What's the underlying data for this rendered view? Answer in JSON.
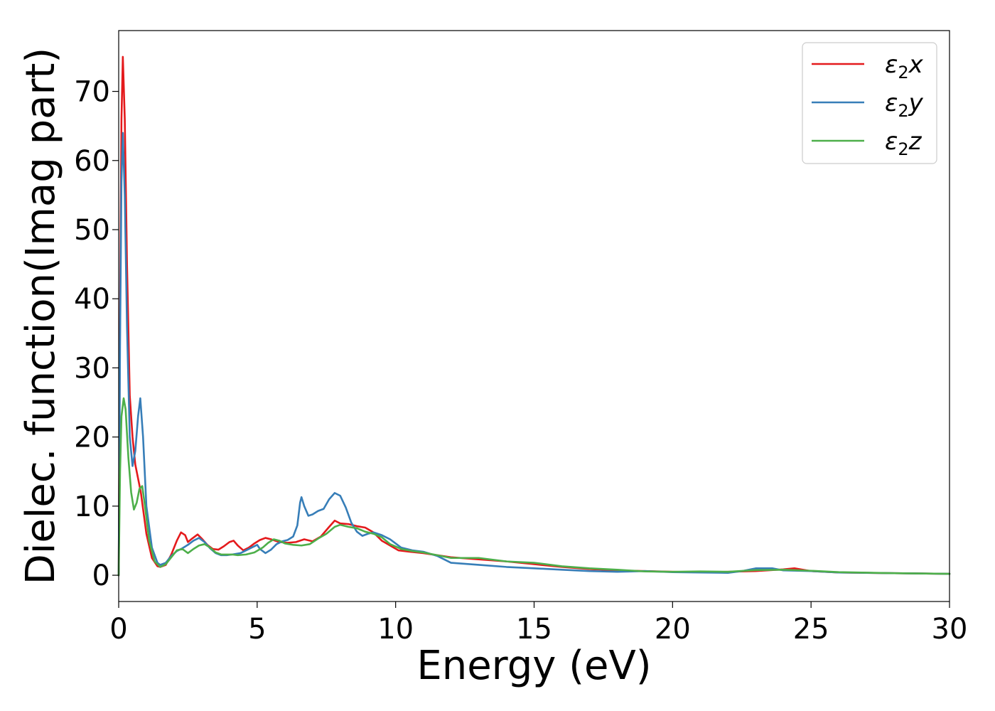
{
  "chart_data": {
    "type": "line",
    "title": "",
    "xlabel": "Energy (eV)",
    "ylabel": "Dielec. function(Imag part)",
    "xlim": [
      0,
      30
    ],
    "ylim": [
      -3.8,
      78.8
    ],
    "xticks": [
      0,
      5,
      10,
      15,
      20,
      25,
      30
    ],
    "yticks": [
      0,
      10,
      20,
      30,
      40,
      50,
      60,
      70
    ],
    "grid": false,
    "legend_position": "top-right",
    "series": [
      {
        "name": "ε2x",
        "label_parts": [
          "ε",
          "2",
          "x"
        ],
        "color": "#e41a1c",
        "points": [
          [
            0,
            0
          ],
          [
            0.05,
            38
          ],
          [
            0.1,
            66
          ],
          [
            0.15,
            75
          ],
          [
            0.22,
            66
          ],
          [
            0.3,
            45
          ],
          [
            0.4,
            26
          ],
          [
            0.5,
            20
          ],
          [
            0.6,
            16
          ],
          [
            0.8,
            12
          ],
          [
            1.0,
            6
          ],
          [
            1.2,
            2.5
          ],
          [
            1.4,
            1.3
          ],
          [
            1.5,
            1.2
          ],
          [
            1.7,
            1.5
          ],
          [
            1.9,
            3
          ],
          [
            2.1,
            5
          ],
          [
            2.25,
            6.2
          ],
          [
            2.4,
            5.8
          ],
          [
            2.5,
            4.8
          ],
          [
            2.65,
            5.3
          ],
          [
            2.85,
            5.9
          ],
          [
            3.0,
            5.3
          ],
          [
            3.2,
            4.4
          ],
          [
            3.4,
            3.8
          ],
          [
            3.6,
            3.7
          ],
          [
            3.8,
            4.2
          ],
          [
            4.0,
            4.8
          ],
          [
            4.15,
            5.0
          ],
          [
            4.3,
            4.3
          ],
          [
            4.5,
            3.6
          ],
          [
            4.7,
            4.0
          ],
          [
            4.9,
            4.6
          ],
          [
            5.1,
            5.1
          ],
          [
            5.3,
            5.4
          ],
          [
            5.5,
            5.2
          ],
          [
            5.8,
            4.8
          ],
          [
            6.1,
            4.7
          ],
          [
            6.4,
            4.8
          ],
          [
            6.7,
            5.2
          ],
          [
            7.0,
            4.9
          ],
          [
            7.3,
            5.6
          ],
          [
            7.6,
            7.0
          ],
          [
            7.8,
            7.9
          ],
          [
            8.0,
            7.5
          ],
          [
            8.3,
            7.4
          ],
          [
            8.6,
            7.1
          ],
          [
            8.9,
            6.9
          ],
          [
            9.2,
            6.2
          ],
          [
            9.5,
            5.0
          ],
          [
            9.8,
            4.3
          ],
          [
            10.1,
            3.6
          ],
          [
            10.5,
            3.4
          ],
          [
            11,
            3.2
          ],
          [
            12,
            2.6
          ],
          [
            13,
            2.3
          ],
          [
            14,
            2.0
          ],
          [
            15,
            1.6
          ],
          [
            16,
            1.2
          ],
          [
            17,
            0.9
          ],
          [
            18,
            0.7
          ],
          [
            19,
            0.6
          ],
          [
            20,
            0.5
          ],
          [
            21,
            0.45
          ],
          [
            22,
            0.5
          ],
          [
            23,
            0.6
          ],
          [
            24,
            0.85
          ],
          [
            24.4,
            1.0
          ],
          [
            25,
            0.6
          ],
          [
            26,
            0.4
          ],
          [
            28,
            0.3
          ],
          [
            30,
            0.2
          ]
        ]
      },
      {
        "name": "ε2y",
        "label_parts": [
          "ε",
          "2",
          "y"
        ],
        "color": "#377eb8",
        "points": [
          [
            0,
            0
          ],
          [
            0.05,
            34
          ],
          [
            0.1,
            57
          ],
          [
            0.15,
            64
          ],
          [
            0.22,
            55
          ],
          [
            0.3,
            36
          ],
          [
            0.4,
            20
          ],
          [
            0.5,
            15.8
          ],
          [
            0.6,
            18
          ],
          [
            0.7,
            23
          ],
          [
            0.78,
            25.6
          ],
          [
            0.88,
            20
          ],
          [
            1.0,
            10
          ],
          [
            1.2,
            4
          ],
          [
            1.4,
            1.8
          ],
          [
            1.5,
            1.5
          ],
          [
            1.7,
            1.8
          ],
          [
            1.9,
            2.8
          ],
          [
            2.1,
            3.5
          ],
          [
            2.3,
            3.9
          ],
          [
            2.5,
            4.4
          ],
          [
            2.7,
            5.0
          ],
          [
            2.9,
            5.4
          ],
          [
            3.1,
            4.8
          ],
          [
            3.3,
            3.9
          ],
          [
            3.5,
            3.2
          ],
          [
            3.7,
            2.9
          ],
          [
            3.9,
            2.9
          ],
          [
            4.1,
            3.0
          ],
          [
            4.4,
            3.2
          ],
          [
            4.6,
            3.6
          ],
          [
            4.8,
            4.0
          ],
          [
            5.0,
            4.4
          ],
          [
            5.1,
            3.8
          ],
          [
            5.3,
            3.2
          ],
          [
            5.5,
            3.7
          ],
          [
            5.7,
            4.5
          ],
          [
            5.9,
            4.9
          ],
          [
            6.1,
            5.1
          ],
          [
            6.3,
            5.6
          ],
          [
            6.45,
            7.2
          ],
          [
            6.55,
            10.5
          ],
          [
            6.6,
            11.3
          ],
          [
            6.7,
            10.0
          ],
          [
            6.85,
            8.6
          ],
          [
            7.0,
            8.8
          ],
          [
            7.2,
            9.3
          ],
          [
            7.4,
            9.6
          ],
          [
            7.6,
            11.0
          ],
          [
            7.8,
            11.9
          ],
          [
            8.0,
            11.5
          ],
          [
            8.2,
            9.8
          ],
          [
            8.4,
            7.6
          ],
          [
            8.6,
            6.3
          ],
          [
            8.8,
            5.7
          ],
          [
            9.0,
            6.0
          ],
          [
            9.2,
            6.2
          ],
          [
            9.5,
            5.8
          ],
          [
            9.8,
            5.2
          ],
          [
            10.2,
            4.0
          ],
          [
            10.6,
            3.6
          ],
          [
            11,
            3.4
          ],
          [
            11.5,
            2.8
          ],
          [
            12,
            1.8
          ],
          [
            13,
            1.5
          ],
          [
            14,
            1.2
          ],
          [
            15,
            1.0
          ],
          [
            16,
            0.8
          ],
          [
            17,
            0.6
          ],
          [
            18,
            0.5
          ],
          [
            19,
            0.6
          ],
          [
            20,
            0.45
          ],
          [
            21,
            0.4
          ],
          [
            22,
            0.35
          ],
          [
            22.5,
            0.6
          ],
          [
            23,
            1.0
          ],
          [
            23.6,
            1.0
          ],
          [
            24,
            0.7
          ],
          [
            25,
            0.6
          ],
          [
            26,
            0.4
          ],
          [
            28,
            0.3
          ],
          [
            30,
            0.2
          ]
        ]
      },
      {
        "name": "ε2z",
        "label_parts": [
          "ε",
          "2",
          "z"
        ],
        "color": "#4daf4a",
        "points": [
          [
            0,
            0
          ],
          [
            0.05,
            15
          ],
          [
            0.1,
            23
          ],
          [
            0.18,
            25.6
          ],
          [
            0.25,
            24
          ],
          [
            0.35,
            17
          ],
          [
            0.45,
            12
          ],
          [
            0.55,
            9.5
          ],
          [
            0.65,
            10.5
          ],
          [
            0.75,
            12.5
          ],
          [
            0.85,
            12.9
          ],
          [
            0.95,
            10.0
          ],
          [
            1.1,
            5.0
          ],
          [
            1.3,
            2.0
          ],
          [
            1.5,
            1.2
          ],
          [
            1.7,
            1.6
          ],
          [
            1.9,
            2.6
          ],
          [
            2.1,
            3.6
          ],
          [
            2.3,
            3.8
          ],
          [
            2.5,
            3.2
          ],
          [
            2.7,
            3.8
          ],
          [
            2.9,
            4.3
          ],
          [
            3.1,
            4.5
          ],
          [
            3.3,
            4.0
          ],
          [
            3.5,
            3.3
          ],
          [
            3.7,
            3.0
          ],
          [
            3.9,
            3.0
          ],
          [
            4.1,
            3.0
          ],
          [
            4.3,
            2.9
          ],
          [
            4.6,
            3.0
          ],
          [
            4.9,
            3.3
          ],
          [
            5.2,
            4.0
          ],
          [
            5.4,
            4.7
          ],
          [
            5.6,
            5.2
          ],
          [
            5.8,
            5.0
          ],
          [
            6.0,
            4.6
          ],
          [
            6.3,
            4.4
          ],
          [
            6.6,
            4.3
          ],
          [
            6.9,
            4.5
          ],
          [
            7.2,
            5.3
          ],
          [
            7.5,
            6.0
          ],
          [
            7.8,
            7.0
          ],
          [
            8.0,
            7.3
          ],
          [
            8.3,
            7.0
          ],
          [
            8.6,
            6.8
          ],
          [
            8.9,
            6.3
          ],
          [
            9.2,
            6.0
          ],
          [
            9.5,
            5.5
          ],
          [
            9.8,
            4.5
          ],
          [
            10.2,
            3.8
          ],
          [
            10.6,
            3.5
          ],
          [
            11,
            3.3
          ],
          [
            12,
            2.5
          ],
          [
            13,
            2.5
          ],
          [
            14,
            2.0
          ],
          [
            15,
            1.8
          ],
          [
            16,
            1.3
          ],
          [
            17,
            1.0
          ],
          [
            18,
            0.8
          ],
          [
            19,
            0.55
          ],
          [
            20,
            0.5
          ],
          [
            21,
            0.55
          ],
          [
            22,
            0.5
          ],
          [
            23,
            0.75
          ],
          [
            24,
            0.8
          ],
          [
            25,
            0.65
          ],
          [
            26,
            0.45
          ],
          [
            28,
            0.3
          ],
          [
            30,
            0.2
          ]
        ]
      }
    ]
  }
}
